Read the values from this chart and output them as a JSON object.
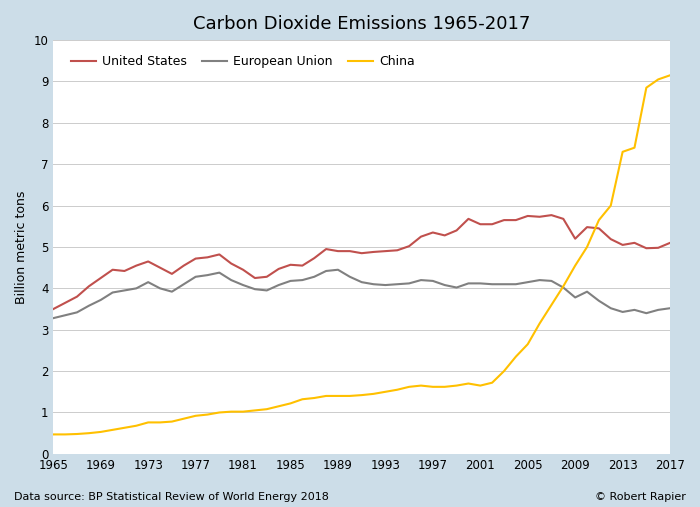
{
  "title": "Carbon Dioxide Emissions 1965-2017",
  "ylabel": "Billion metric tons",
  "footnote_left": "Data source: BP Statistical Review of World Energy 2018",
  "footnote_right": "© Robert Rapier",
  "ylim": [
    0,
    10
  ],
  "xlim": [
    1965,
    2017
  ],
  "fig_background_color": "#ccdde8",
  "plot_background_color": "#ffffff",
  "years": [
    1965,
    1966,
    1967,
    1968,
    1969,
    1970,
    1971,
    1972,
    1973,
    1974,
    1975,
    1976,
    1977,
    1978,
    1979,
    1980,
    1981,
    1982,
    1983,
    1984,
    1985,
    1986,
    1987,
    1988,
    1989,
    1990,
    1991,
    1992,
    1993,
    1994,
    1995,
    1996,
    1997,
    1998,
    1999,
    2000,
    2001,
    2002,
    2003,
    2004,
    2005,
    2006,
    2007,
    2008,
    2009,
    2010,
    2011,
    2012,
    2013,
    2014,
    2015,
    2016,
    2017
  ],
  "us": [
    3.5,
    3.65,
    3.8,
    4.05,
    4.25,
    4.45,
    4.42,
    4.55,
    4.65,
    4.5,
    4.35,
    4.55,
    4.72,
    4.75,
    4.82,
    4.6,
    4.45,
    4.25,
    4.28,
    4.47,
    4.57,
    4.55,
    4.73,
    4.95,
    4.9,
    4.9,
    4.85,
    4.88,
    4.9,
    4.92,
    5.02,
    5.25,
    5.35,
    5.28,
    5.4,
    5.68,
    5.55,
    5.55,
    5.65,
    5.65,
    5.75,
    5.73,
    5.77,
    5.68,
    5.2,
    5.48,
    5.45,
    5.19,
    5.05,
    5.1,
    4.97,
    4.98,
    5.1
  ],
  "eu": [
    3.28,
    3.35,
    3.42,
    3.58,
    3.72,
    3.9,
    3.95,
    4.0,
    4.15,
    4.0,
    3.92,
    4.1,
    4.28,
    4.32,
    4.38,
    4.2,
    4.08,
    3.98,
    3.95,
    4.08,
    4.18,
    4.2,
    4.28,
    4.42,
    4.45,
    4.28,
    4.15,
    4.1,
    4.08,
    4.1,
    4.12,
    4.2,
    4.18,
    4.08,
    4.02,
    4.12,
    4.12,
    4.1,
    4.1,
    4.1,
    4.15,
    4.2,
    4.18,
    4.02,
    3.78,
    3.92,
    3.7,
    3.52,
    3.43,
    3.48,
    3.4,
    3.48,
    3.52
  ],
  "china": [
    0.47,
    0.47,
    0.48,
    0.5,
    0.53,
    0.58,
    0.63,
    0.68,
    0.76,
    0.76,
    0.78,
    0.85,
    0.92,
    0.95,
    1.0,
    1.02,
    1.02,
    1.05,
    1.08,
    1.15,
    1.22,
    1.32,
    1.35,
    1.4,
    1.4,
    1.4,
    1.42,
    1.45,
    1.5,
    1.55,
    1.62,
    1.65,
    1.62,
    1.62,
    1.65,
    1.7,
    1.65,
    1.72,
    2.0,
    2.35,
    2.65,
    3.15,
    3.6,
    4.05,
    4.55,
    5.0,
    5.65,
    6.0,
    7.3,
    7.4,
    8.85,
    9.05,
    9.15
  ],
  "us_color": "#c0504d",
  "eu_color": "#808080",
  "china_color": "#ffc000",
  "line_width": 1.5,
  "title_fontsize": 13,
  "tick_fontsize": 8.5,
  "label_fontsize": 9,
  "legend_fontsize": 9,
  "footnote_fontsize": 8,
  "xticks": [
    1965,
    1969,
    1973,
    1977,
    1981,
    1985,
    1989,
    1993,
    1997,
    2001,
    2005,
    2009,
    2013,
    2017
  ],
  "yticks": [
    0,
    1,
    2,
    3,
    4,
    5,
    6,
    7,
    8,
    9,
    10
  ]
}
